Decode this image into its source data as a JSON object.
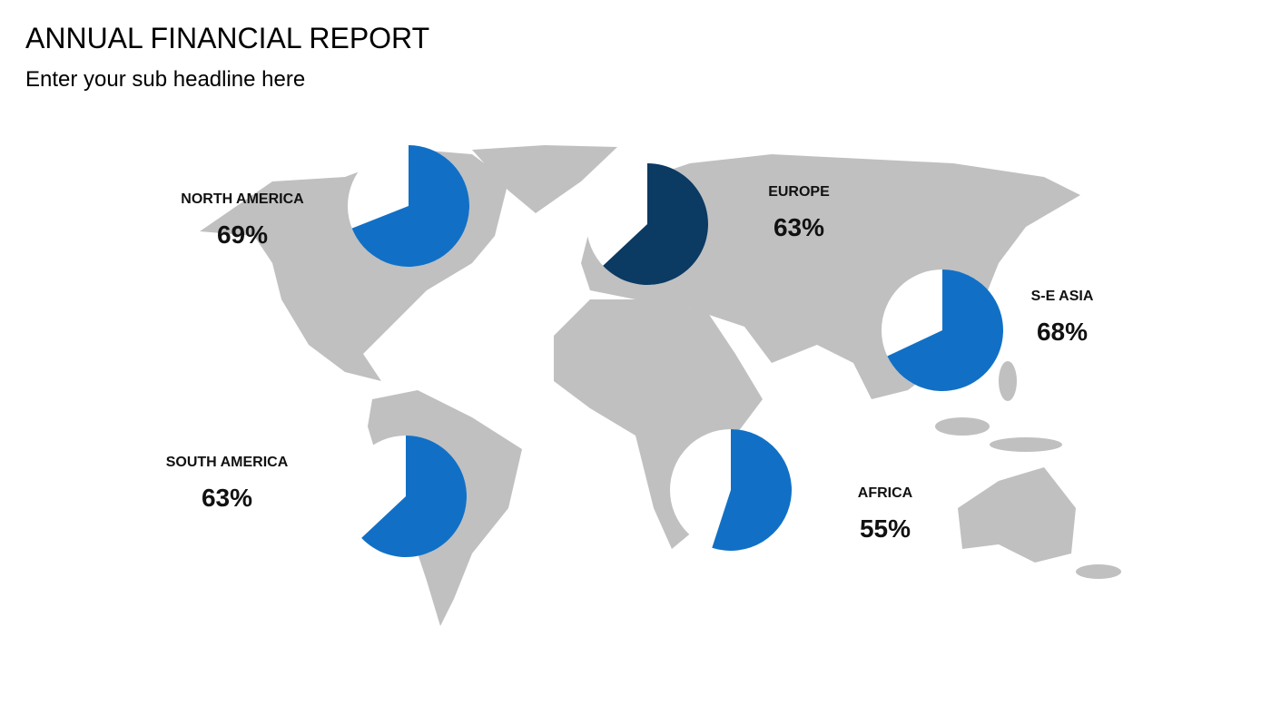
{
  "header": {
    "title": "ANNUAL FINANCIAL REPORT",
    "subtitle": "Enter your sub headline here"
  },
  "chart_data": {
    "type": "pie-map",
    "regions": [
      {
        "name": "NORTH AMERICA",
        "value": 69,
        "value_label": "69%",
        "color": "#1170c6"
      },
      {
        "name": "EUROPE",
        "value": 63,
        "value_label": "63%",
        "color": "#0b3a63"
      },
      {
        "name": "S-E ASIA",
        "value": 68,
        "value_label": "68%",
        "color": "#1170c6"
      },
      {
        "name": "SOUTH AMERICA",
        "value": 63,
        "value_label": "63%",
        "color": "#1170c6"
      },
      {
        "name": "AFRICA",
        "value": 55,
        "value_label": "55%",
        "color": "#1170c6"
      }
    ]
  }
}
